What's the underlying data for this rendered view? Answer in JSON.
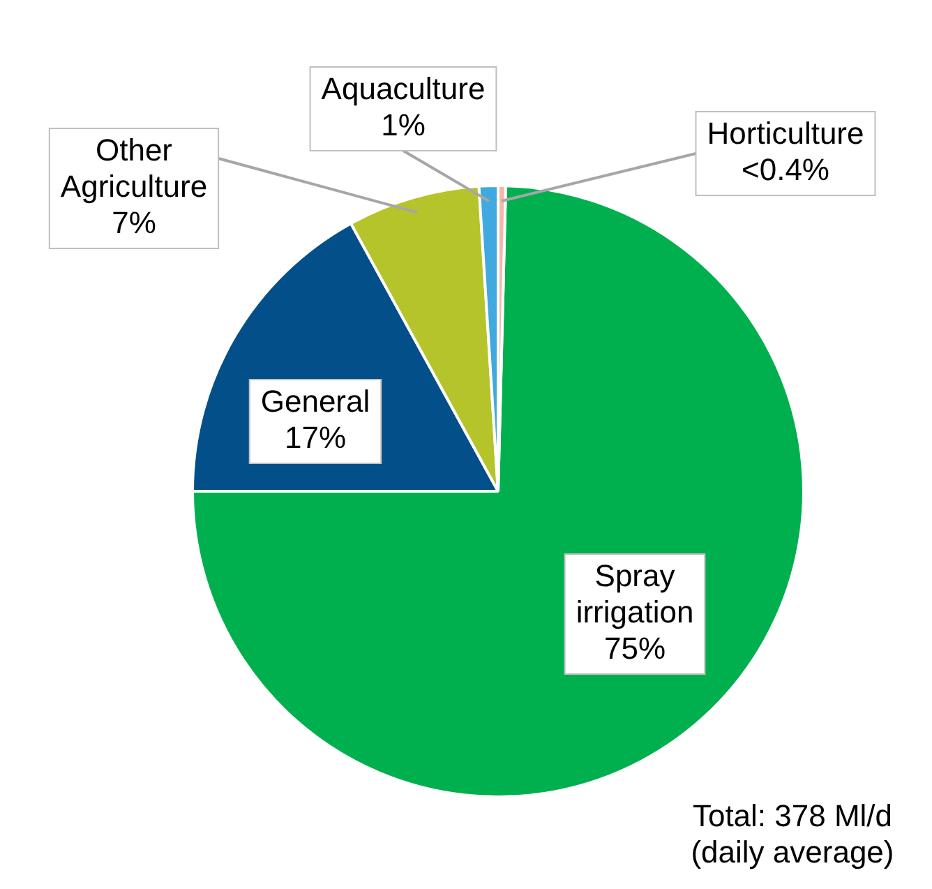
{
  "chart_data": {
    "type": "pie",
    "categories": [
      "Spray irrigation",
      "General",
      "Other Agriculture",
      "Aquaculture",
      "Horticulture"
    ],
    "values": [
      74.6,
      17,
      7,
      1,
      0.4
    ],
    "value_labels": [
      "75%",
      "17%",
      "7%",
      "1%",
      "<0.4%"
    ],
    "colors": [
      "#00b04f",
      "#034f8a",
      "#b5c42a",
      "#3fa9e0",
      "#f4b8a8"
    ],
    "legend": false,
    "annotations": [
      "Total: 378 Ml/d (daily average)"
    ]
  }
}
